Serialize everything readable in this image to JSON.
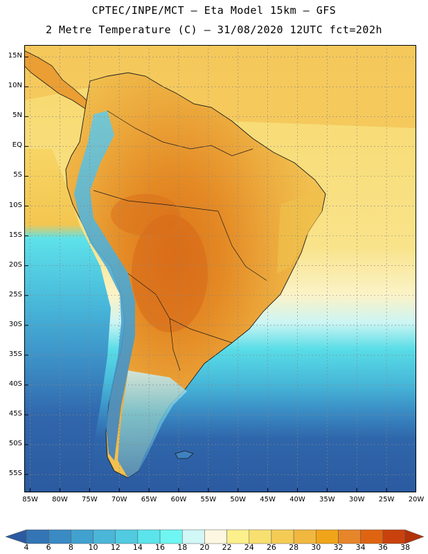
{
  "header": {
    "title_line1": "CPTEC/INPE/MCT –  Eta Model 15km – GFS",
    "title_line2": "2 Metre Temperature (C) – 31/08/2020 12UTC fct=202h"
  },
  "map": {
    "lat_labels": [
      "15N",
      "10N",
      "5N",
      "EQ",
      "5S",
      "10S",
      "15S",
      "20S",
      "25S",
      "30S",
      "35S",
      "40S",
      "45S",
      "50S",
      "55S"
    ],
    "lat_values": [
      15,
      10,
      5,
      0,
      -5,
      -10,
      -15,
      -20,
      -25,
      -30,
      -35,
      -40,
      -45,
      -50,
      -55
    ],
    "lon_labels": [
      "85W",
      "80W",
      "75W",
      "70W",
      "65W",
      "60W",
      "55W",
      "50W",
      "45W",
      "40W",
      "35W",
      "30W",
      "25W",
      "20W"
    ],
    "lon_values": [
      -85,
      -80,
      -75,
      -70,
      -65,
      -60,
      -55,
      -50,
      -45,
      -40,
      -35,
      -30,
      -25,
      -20
    ],
    "lat_range": [
      -58,
      17
    ],
    "lon_range": [
      -86,
      -20
    ],
    "grid": true,
    "colors": {
      "ocean_cold": "#2e62a8",
      "ocean_mid": "#3fa3cf",
      "ocean_cyan": "#55dbe6",
      "ocean_warm": "#f5d36a",
      "land_hot": "#e0821e",
      "land_warm": "#eca940",
      "land_cool": "#5aa7d2"
    }
  },
  "legend": {
    "labels": [
      "4",
      "6",
      "8",
      "10",
      "12",
      "14",
      "16",
      "18",
      "20",
      "22",
      "24",
      "26",
      "28",
      "30",
      "32",
      "34",
      "36",
      "38"
    ],
    "colors": [
      "#2c5aa0",
      "#3375b5",
      "#3a8ac4",
      "#41a1cf",
      "#4bb6d8",
      "#51cbe0",
      "#5be4eb",
      "#6ff6f2",
      "#d1f7f6",
      "#fdf7e1",
      "#fbf08b",
      "#f7e070",
      "#f4cc55",
      "#f0b83f",
      "#f0a419",
      "#e7852a",
      "#df6412",
      "#c9420d",
      "#b2320a"
    ]
  }
}
